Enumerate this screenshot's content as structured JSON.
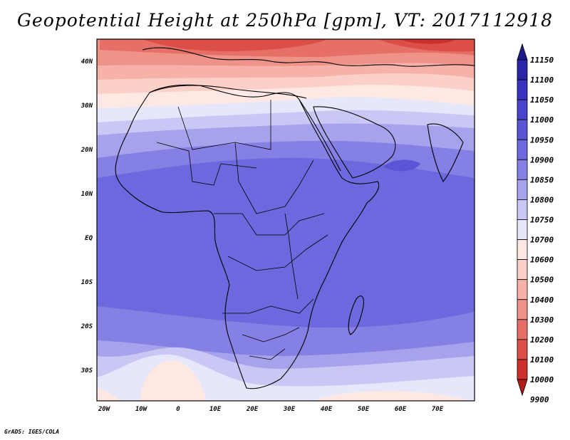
{
  "map": {
    "title": "Geopotential Height at 250hPa [gpm], VT: 2017112918",
    "credit": "GrADS: IGES/COLA",
    "variable": "geopotential height",
    "level": "250hPa",
    "lon_range": [
      -20,
      80
    ],
    "lat_range": [
      -37,
      45
    ],
    "lon_ticks": [
      "20W",
      "10W",
      "0",
      "10E",
      "20E",
      "30E",
      "40E",
      "50E",
      "60E",
      "70E"
    ],
    "lat_ticks": [
      "40N",
      "30N",
      "20N",
      "10N",
      "EQ",
      "10S",
      "20S",
      "30S"
    ]
  },
  "colorbar": {
    "labels": [
      "11150",
      "11100",
      "11050",
      "11000",
      "10950",
      "10900",
      "10850",
      "10800",
      "10750",
      "10700",
      "10600",
      "10500",
      "10400",
      "10300",
      "10200",
      "10100",
      "10000",
      "9900"
    ],
    "colors": [
      "#1e1a8c",
      "#2a24a8",
      "#3a33c0",
      "#4a44cc",
      "#5b55d6",
      "#6d68dd",
      "#8580e3",
      "#a6a3ec",
      "#c9c8f4",
      "#e7e7fb",
      "#fde8e4",
      "#fbd0c8",
      "#f6b2a8",
      "#ef9288",
      "#e67068",
      "#dc4e48",
      "#cc302c",
      "#b01a18"
    ]
  }
}
